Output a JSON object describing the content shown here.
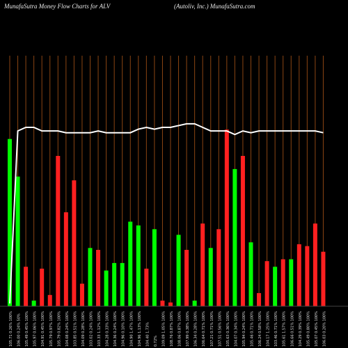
{
  "header": {
    "left": "MunafaSutra  Money Flow  Charts for ALV",
    "right": "(Autoliv,  Inc.) MunafaSutra.com"
  },
  "colors": {
    "background": "#000000",
    "grid": "#8B4513",
    "up": "#00FF00",
    "down": "#FF2020",
    "line": "#FFFFFF",
    "label": "#E0E0E0"
  },
  "chart_data": {
    "type": "bar",
    "description_series": [
      "money_flow_bars",
      "price_line"
    ],
    "ylim": [
      0,
      1
    ],
    "categories": [
      "105.71 0.26% 100%",
      "106.00 0.24% 50%",
      "105.49 0.45% 100%",
      "105.97 0.06% 100%",
      "104.91 0.45% 100%",
      "105.79 0.97% 100%",
      "105.79 0.82% 100%",
      "104.08 0.24% 100%",
      "103.85 0.51% 100%",
      "104.09 0.28% 100%",
      "103.02 0.24% 100%",
      "103.33 1.12% 100%",
      "104.28 0.33% 100%",
      "104.36 0.24% 100%",
      "104.96 0.10% 100%",
      "104.90 1.47% 100%",
      "104.96 1.13% 100%",
      "104.40 1.73%",
      "0.72%",
      "109.09 1.05% 100%",
      "108.76 0.87% 100%",
      "108.06 0.87% 100%",
      "107.99 0.38% 100%",
      "106.34 0.28% 100%",
      "106.64 0.71% 100%",
      "107.21 0.71% 100%",
      "107.51 0.56% 100%",
      "105.63 0.36% 100%",
      "104.07 0.34% 100%",
      "105.94 0.24% 100%",
      "105.46 0.71% 100%",
      "106.24 0.58% 100%",
      "104.17 1.25% 100%",
      "103.46 0.71% 100%",
      "105.61 1.57% 100%",
      "106.66 0.51% 100%",
      "104.29 0.39% 100%",
      "105.49 0.80% 100%",
      "105.07 0.45% 100%",
      "106.03 0.20% 100%"
    ],
    "bars": [
      {
        "value": 0.89,
        "dir": "up"
      },
      {
        "value": 0.69,
        "dir": "up"
      },
      {
        "value": 0.21,
        "dir": "down"
      },
      {
        "value": 0.03,
        "dir": "up"
      },
      {
        "value": 0.2,
        "dir": "down"
      },
      {
        "value": 0.06,
        "dir": "down"
      },
      {
        "value": 0.8,
        "dir": "down"
      },
      {
        "value": 0.5,
        "dir": "down"
      },
      {
        "value": 0.67,
        "dir": "down"
      },
      {
        "value": 0.12,
        "dir": "down"
      },
      {
        "value": 0.31,
        "dir": "up"
      },
      {
        "value": 0.3,
        "dir": "down"
      },
      {
        "value": 0.19,
        "dir": "up"
      },
      {
        "value": 0.23,
        "dir": "up"
      },
      {
        "value": 0.23,
        "dir": "up"
      },
      {
        "value": 0.45,
        "dir": "up"
      },
      {
        "value": 0.43,
        "dir": "up"
      },
      {
        "value": 0.2,
        "dir": "down"
      },
      {
        "value": 0.41,
        "dir": "up"
      },
      {
        "value": 0.03,
        "dir": "down"
      },
      {
        "value": 0.02,
        "dir": "down"
      },
      {
        "value": 0.38,
        "dir": "up"
      },
      {
        "value": 0.3,
        "dir": "down"
      },
      {
        "value": 0.03,
        "dir": "up"
      },
      {
        "value": 0.44,
        "dir": "down"
      },
      {
        "value": 0.31,
        "dir": "up"
      },
      {
        "value": 0.41,
        "dir": "down"
      },
      {
        "value": 0.94,
        "dir": "down"
      },
      {
        "value": 0.73,
        "dir": "up"
      },
      {
        "value": 0.8,
        "dir": "down"
      },
      {
        "value": 0.34,
        "dir": "up"
      },
      {
        "value": 0.07,
        "dir": "down"
      },
      {
        "value": 0.24,
        "dir": "down"
      },
      {
        "value": 0.21,
        "dir": "up"
      },
      {
        "value": 0.25,
        "dir": "down"
      },
      {
        "value": 0.25,
        "dir": "up"
      },
      {
        "value": 0.33,
        "dir": "down"
      },
      {
        "value": 0.32,
        "dir": "down"
      },
      {
        "value": 0.44,
        "dir": "down"
      },
      {
        "value": 0.29,
        "dir": "down"
      }
    ],
    "price_line": [
      0.13,
      0.98,
      1.0,
      1.0,
      0.98,
      0.98,
      0.98,
      0.97,
      0.97,
      0.97,
      0.97,
      0.98,
      0.97,
      0.97,
      0.97,
      0.97,
      0.99,
      1.0,
      0.99,
      1.0,
      1.0,
      1.01,
      1.02,
      1.02,
      1.0,
      0.98,
      0.98,
      0.98,
      0.96,
      0.98,
      0.97,
      0.98,
      0.98,
      0.98,
      0.98,
      0.98,
      0.98,
      0.98,
      0.98,
      0.97
    ]
  }
}
